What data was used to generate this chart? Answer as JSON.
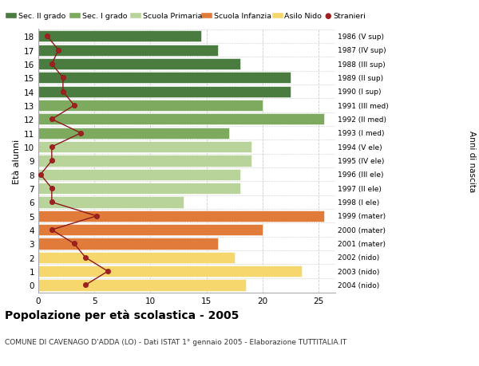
{
  "ages": [
    18,
    17,
    16,
    15,
    14,
    13,
    12,
    11,
    10,
    9,
    8,
    7,
    6,
    5,
    4,
    3,
    2,
    1,
    0
  ],
  "right_labels": [
    "1986 (V sup)",
    "1987 (IV sup)",
    "1988 (III sup)",
    "1989 (II sup)",
    "1990 (I sup)",
    "1991 (III med)",
    "1992 (II med)",
    "1993 (I med)",
    "1994 (V ele)",
    "1995 (IV ele)",
    "1996 (III ele)",
    "1997 (II ele)",
    "1998 (I ele)",
    "1999 (mater)",
    "2000 (mater)",
    "2001 (mater)",
    "2002 (nido)",
    "2003 (nido)",
    "2004 (nido)"
  ],
  "bar_values": [
    14.5,
    16,
    18,
    22.5,
    22.5,
    20,
    25.5,
    17,
    19,
    19,
    18,
    18,
    13,
    25.5,
    20,
    16,
    17.5,
    23.5,
    18.5
  ],
  "bar_colors": [
    "#4a7c3f",
    "#4a7c3f",
    "#4a7c3f",
    "#4a7c3f",
    "#4a7c3f",
    "#7daa5e",
    "#7daa5e",
    "#7daa5e",
    "#b8d49a",
    "#b8d49a",
    "#b8d49a",
    "#b8d49a",
    "#b8d49a",
    "#e07b39",
    "#e07b39",
    "#e07b39",
    "#f5d76e",
    "#f5d76e",
    "#f5d76e"
  ],
  "stranieri_values": [
    0.8,
    1.8,
    1.2,
    2.2,
    2.2,
    3.2,
    1.2,
    3.8,
    1.2,
    1.2,
    0.2,
    1.2,
    1.2,
    5.2,
    1.2,
    3.2,
    4.2,
    6.2,
    4.2
  ],
  "legend_labels": [
    "Sec. II grado",
    "Sec. I grado",
    "Scuola Primaria",
    "Scuola Infanzia",
    "Asilo Nido",
    "Stranieri"
  ],
  "legend_colors": [
    "#4a7c3f",
    "#7daa5e",
    "#b8d49a",
    "#e07b39",
    "#f5d76e",
    "#a02020"
  ],
  "ylabel": "Età alunni",
  "right_ylabel": "Anni di nascita",
  "title": "Popolazione per età scolastica - 2005",
  "subtitle": "COMUNE DI CAVENAGO D'ADDA (LO) - Dati ISTAT 1° gennaio 2005 - Elaborazione TUTTITALIA.IT",
  "xlim": [
    0,
    26.5
  ],
  "xticks": [
    0,
    5,
    10,
    15,
    20,
    25
  ],
  "bar_height": 0.82
}
